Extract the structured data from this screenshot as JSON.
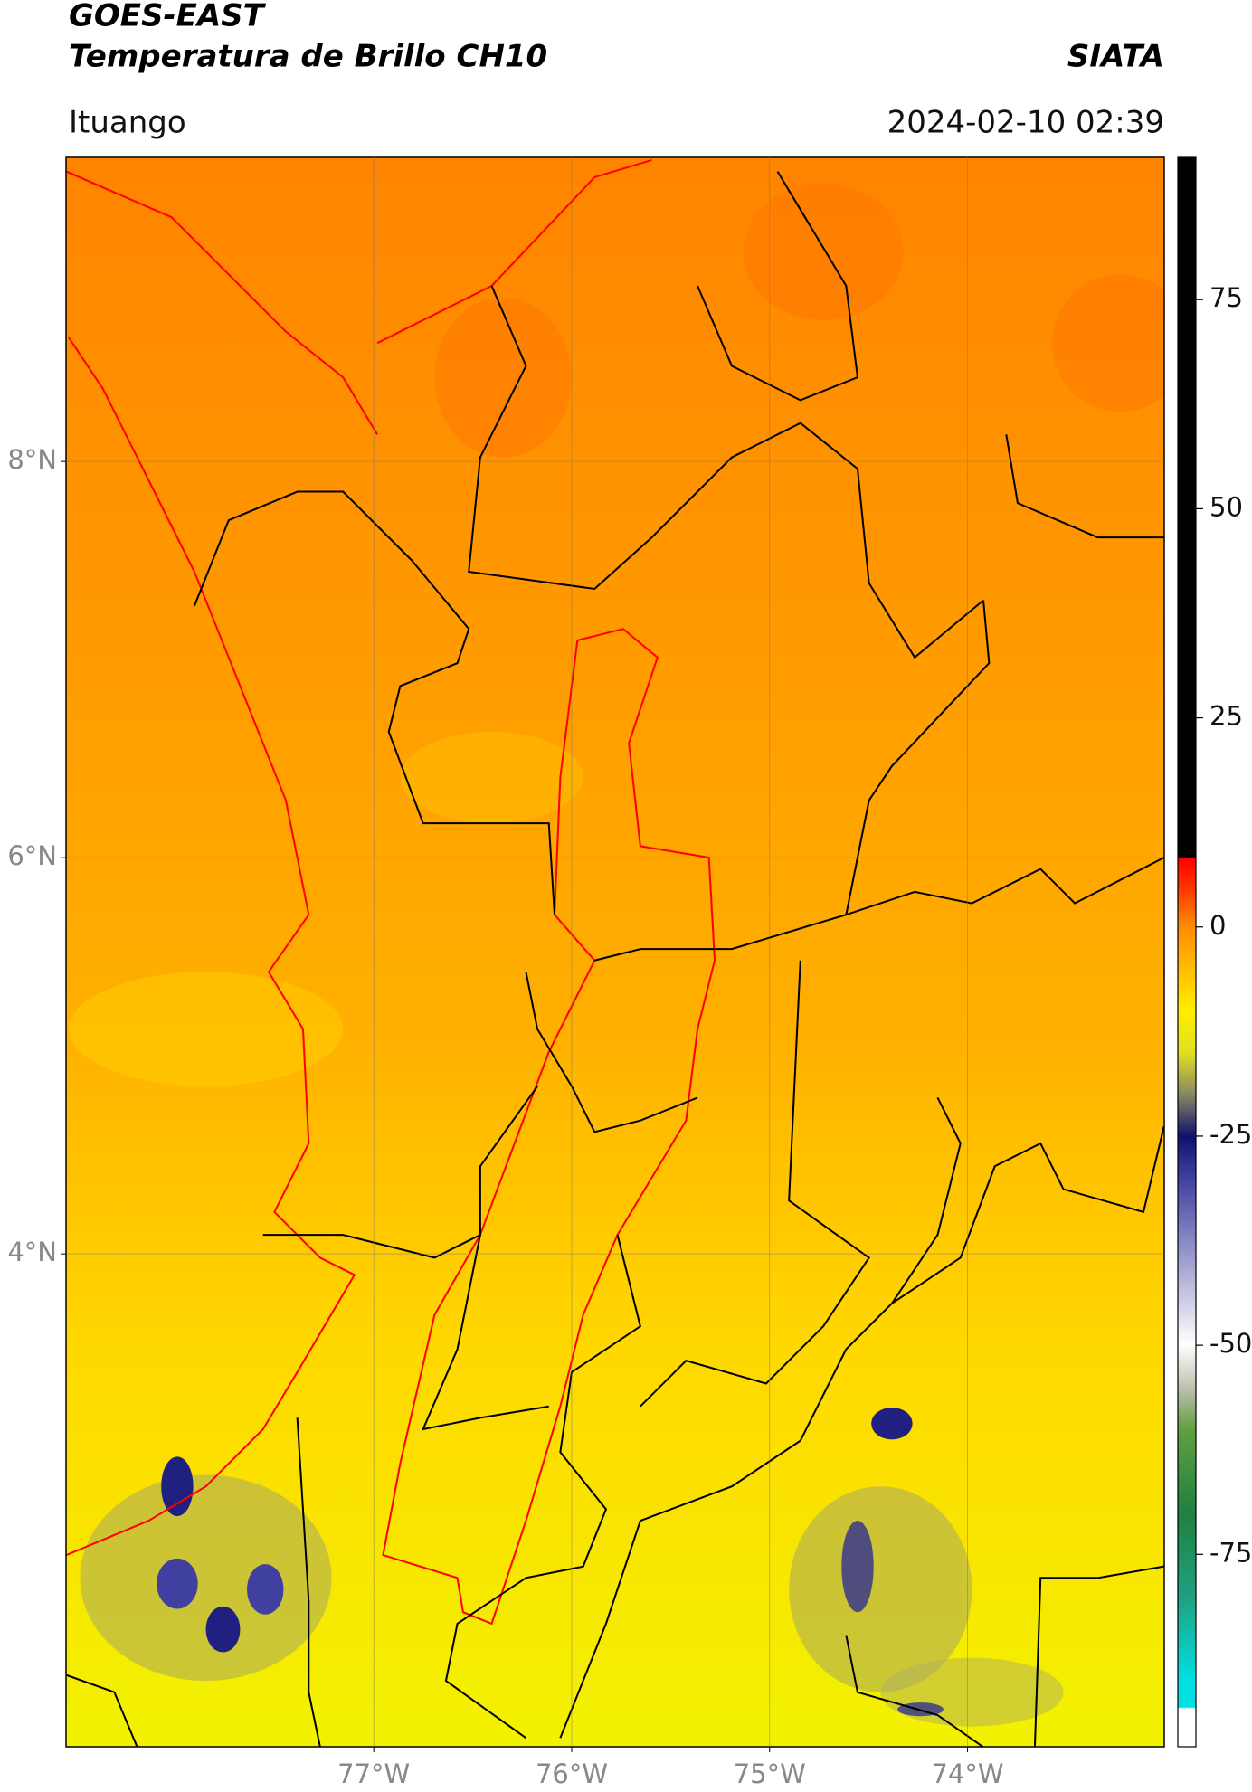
{
  "header": {
    "title": "GOES-EAST",
    "subtitle": "Temperatura de Brillo CH10",
    "source": "SIATA",
    "location": "Ituango",
    "timestamp": "2024-02-10 02:39"
  },
  "map": {
    "lonlim": [
      -78.555,
      -73.006
    ],
    "latlim": [
      1.512,
      9.535
    ],
    "lon_ticks": [
      {
        "value": -77,
        "label": "77°W"
      },
      {
        "value": -76,
        "label": "76°W"
      },
      {
        "value": -75,
        "label": "75°W"
      },
      {
        "value": -74,
        "label": "74°W"
      }
    ],
    "lat_ticks": [
      {
        "value": 8,
        "label": "8°N"
      },
      {
        "value": 6,
        "label": "6°N"
      },
      {
        "value": 4,
        "label": "4°N"
      }
    ],
    "grid": true
  },
  "colorbar": {
    "lim": [
      -98,
      92
    ],
    "ticks": [
      75,
      50,
      25,
      0,
      -25,
      -50,
      -75
    ]
  }
}
